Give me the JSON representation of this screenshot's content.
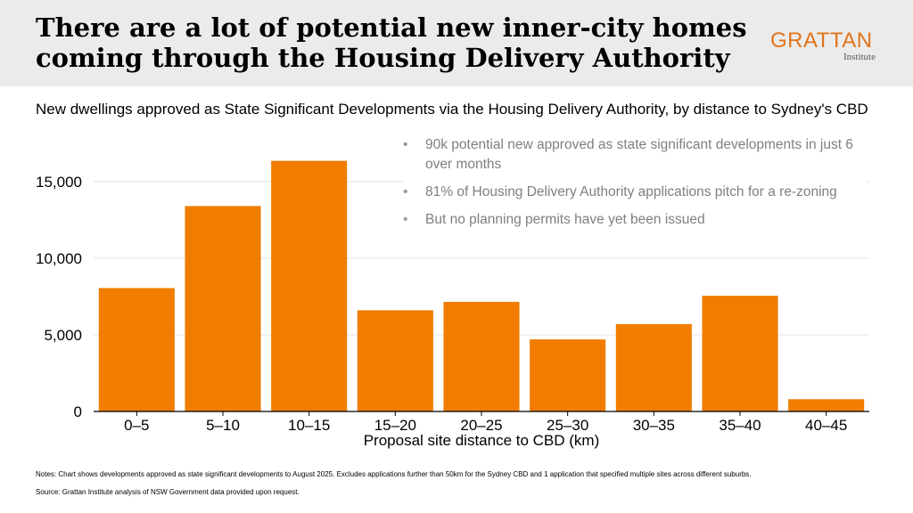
{
  "header": {
    "title_line1": "There are a lot of potential new inner-city homes",
    "title_line2": "coming through the Housing Delivery Authority",
    "logo": "GRATTAN",
    "logo_sub": "Institute"
  },
  "colors": {
    "bar": "#f07c00",
    "accent": "#e1741b",
    "header_bg": "#ebebeb",
    "bullet_text": "#7f7f7f"
  },
  "subtitle": "New dwellings approved as State Significant Developments via the Housing Delivery Authority, by distance to Sydney's CBD",
  "bullets": [
    "90k potential new approved as state significant developments in just 6 over months",
    "81% of Housing Delivery Authority applications pitch for a re-zoning",
    "But no planning permits have yet been issued"
  ],
  "chart_data": {
    "type": "bar",
    "categories": [
      "0–5",
      "5–10",
      "10–15",
      "15–20",
      "20–25",
      "25–30",
      "30–35",
      "35–40",
      "40–45"
    ],
    "values": [
      8050,
      13400,
      16350,
      6600,
      7150,
      4700,
      5700,
      7550,
      800
    ],
    "ylim": [
      0,
      16500
    ],
    "yticks": [
      0,
      5000,
      10000,
      15000
    ],
    "ytick_labels": [
      "0",
      "5,000",
      "10,000",
      "15,000"
    ],
    "xlabel": "Proposal site distance to CBD (km)",
    "ylabel": "",
    "grid": true
  },
  "notes": "Notes: Chart shows developments approved as state significant developments to August 2025. Excludes applications further than 50km for the Sydney CBD and 1 application that specified multiple sites across different suburbs.",
  "source": "Source: Grattan Institute analysis of NSW Government data provided upon request."
}
